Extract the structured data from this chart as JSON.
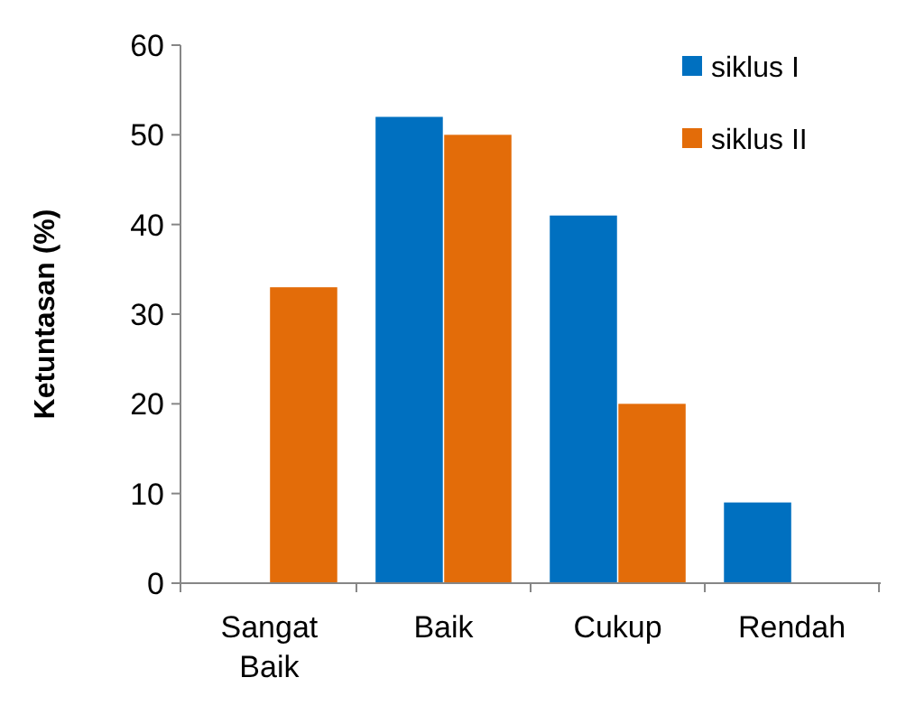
{
  "chart_data": {
    "type": "bar",
    "ylabel": "Ketuntasan (%)",
    "categories": [
      "Sangat Baik",
      "Baik",
      "Cukup",
      "Rendah"
    ],
    "series": [
      {
        "name": "siklus I",
        "color": "#0070c0",
        "values": [
          0,
          52,
          41,
          9
        ]
      },
      {
        "name": "siklus II",
        "color": "#e36c09",
        "values": [
          33,
          50,
          20,
          0
        ]
      }
    ],
    "ylim": [
      0,
      60
    ],
    "yticks": [
      0,
      10,
      20,
      30,
      40,
      50,
      60
    ],
    "grid": false,
    "legend": "top right"
  }
}
